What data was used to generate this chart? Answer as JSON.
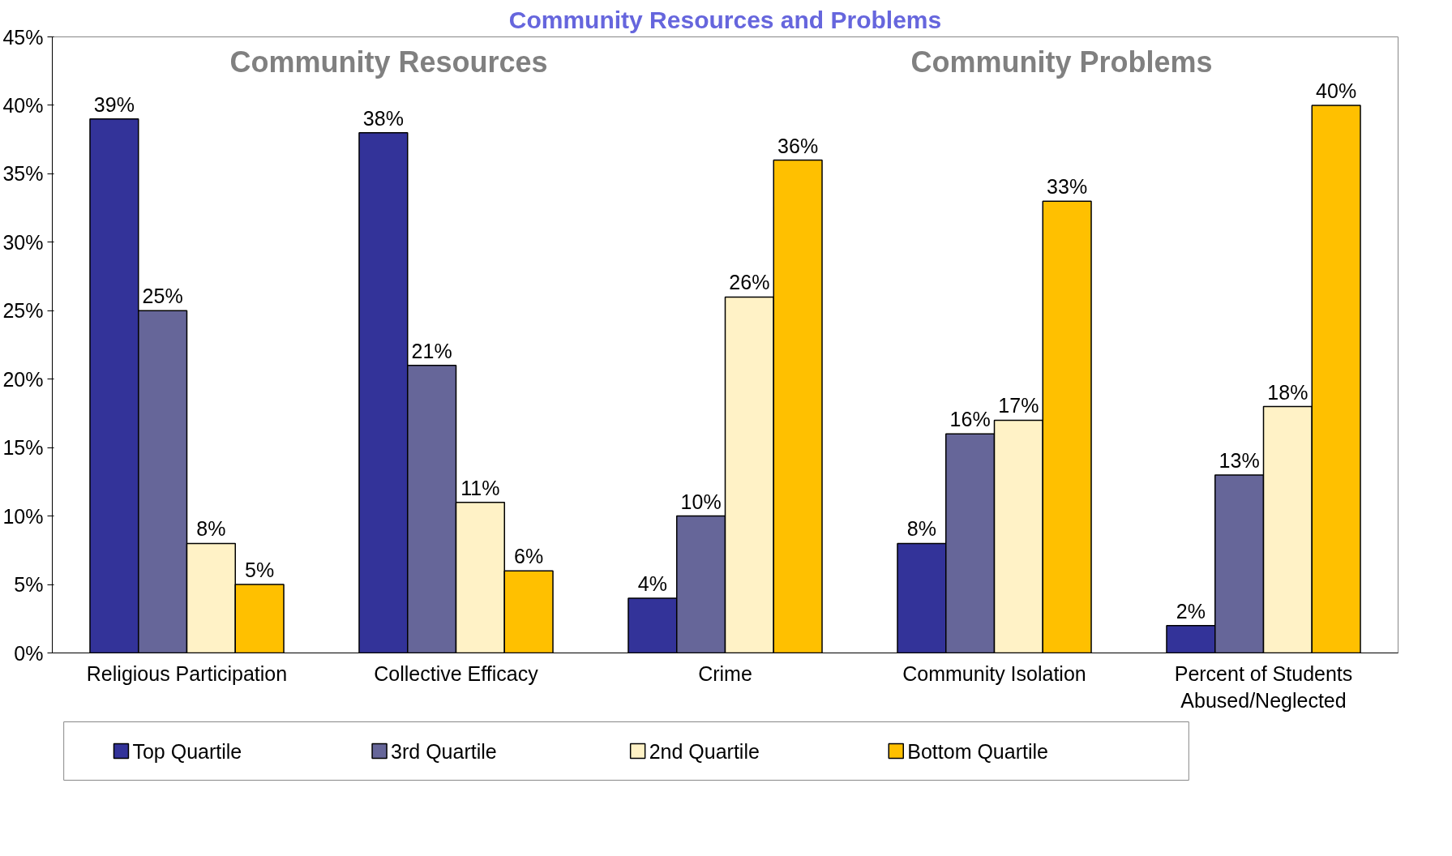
{
  "chart_data": {
    "type": "bar",
    "title": "Community Resources and Problems",
    "annotations": [
      "Community Resources",
      "Community Problems"
    ],
    "categories": [
      "Religious Participation",
      "Collective Efficacy",
      "Crime",
      "Community Isolation",
      "Percent of Students\nAbused/Neglected"
    ],
    "series": [
      {
        "name": "Top Quartile",
        "color": "#333399",
        "values": [
          39,
          38,
          4,
          8,
          2
        ],
        "value_labels": [
          "39%",
          "38%",
          "4%",
          "8%",
          "2%"
        ]
      },
      {
        "name": "3rd Quartile",
        "color": "#666699",
        "values": [
          25,
          21,
          10,
          16,
          13
        ],
        "value_labels": [
          "25%",
          "21%",
          "10%",
          "16%",
          "13%"
        ]
      },
      {
        "name": "2nd Quartile",
        "color": "#fff2c6",
        "values": [
          8,
          11,
          26,
          17,
          18
        ],
        "value_labels": [
          "8%",
          "11%",
          "26%",
          "17%",
          "18%"
        ]
      },
      {
        "name": "Bottom Quartile",
        "color": "#ffc000",
        "values": [
          5,
          6,
          36,
          33,
          40
        ],
        "value_labels": [
          "5%",
          "6%",
          "36%",
          "33%",
          "40%"
        ]
      }
    ],
    "ylim": [
      0,
      45
    ],
    "yticks": [
      {
        "value": 0,
        "label": "0%"
      },
      {
        "value": 5,
        "label": "5%"
      },
      {
        "value": 10,
        "label": "10%"
      },
      {
        "value": 15,
        "label": "15%"
      },
      {
        "value": 20,
        "label": "20%"
      },
      {
        "value": 25,
        "label": "25%"
      },
      {
        "value": 30,
        "label": "30%"
      },
      {
        "value": 35,
        "label": "35%"
      },
      {
        "value": 40,
        "label": "40%"
      },
      {
        "value": 45,
        "label": "45%"
      }
    ],
    "grid": false,
    "legend": "bottom"
  }
}
